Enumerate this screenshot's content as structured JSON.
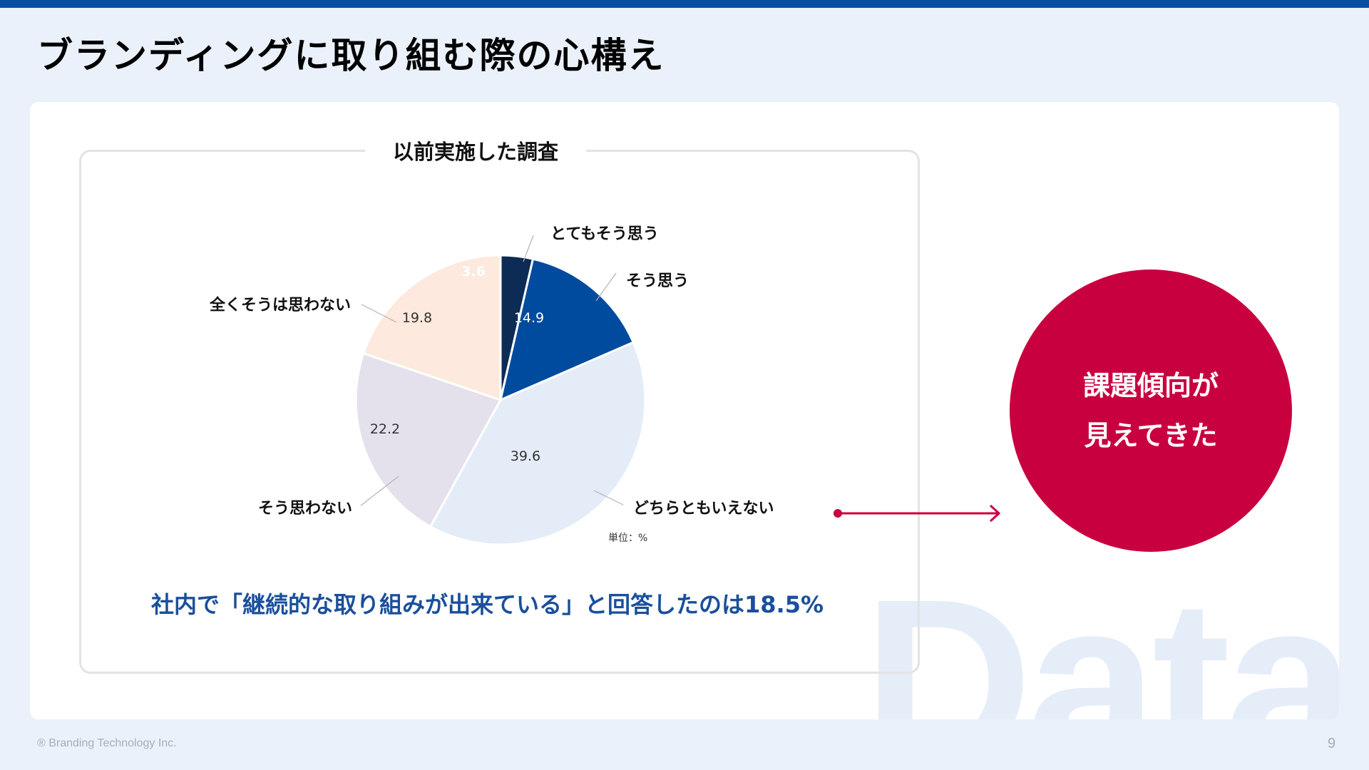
{
  "page_title": "ブランディングに取り組む際の心構え",
  "survey": {
    "title": "以前実施した調査",
    "unit_label": "単位：%",
    "summary": "社内で「継続的な取り組みが出来ている」と回答したのは18.5%"
  },
  "chart_data": {
    "type": "pie",
    "title": "以前実施した調査",
    "unit": "%",
    "slices": [
      {
        "label": "とてもそう思う",
        "value": 3.6,
        "color": "#0c2c55"
      },
      {
        "label": "そう思う",
        "value": 14.9,
        "color": "#004b9e"
      },
      {
        "label": "どちらともいえない",
        "value": 39.6,
        "color": "#e4ecf7"
      },
      {
        "label": "そう思わない",
        "value": 22.2,
        "color": "#e5e1ec"
      },
      {
        "label": "全くそうは思わない",
        "value": 19.8,
        "color": "#fde9dd"
      }
    ]
  },
  "callout": {
    "line1": "課題傾向が",
    "line2": "見えてきた",
    "color": "#c8003f"
  },
  "watermark": "Data",
  "footer": {
    "copyright": "® Branding Technology Inc.",
    "page_number": "9"
  },
  "colors": {
    "accent": "#0a4ea0",
    "background": "#ebf1fa",
    "summary_text": "#1a4f9c"
  }
}
